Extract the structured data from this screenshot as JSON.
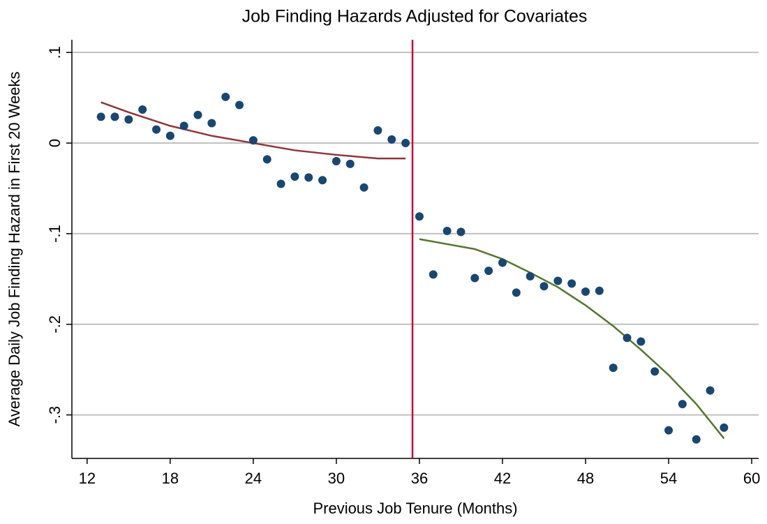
{
  "chart_data": {
    "type": "scatter",
    "title": "Job Finding Hazards Adjusted for Covariates",
    "x_label": "Previous Job Tenure (Months)",
    "y_label": "Average Daily Job Finding Hazard in First 20 Weeks",
    "x": [
      13,
      14,
      15,
      16,
      17,
      18,
      19,
      20,
      21,
      22,
      23,
      24,
      25,
      26,
      27,
      28,
      29,
      30,
      31,
      32,
      33,
      34,
      35,
      36,
      37,
      38,
      39,
      40,
      41,
      42,
      43,
      44,
      45,
      46,
      47,
      48,
      49,
      50,
      51,
      52,
      53,
      54,
      55,
      56,
      57,
      58
    ],
    "values": [
      0.029,
      0.029,
      0.026,
      0.037,
      0.015,
      0.008,
      0.019,
      0.031,
      0.022,
      0.051,
      0.042,
      0.003,
      -0.018,
      -0.045,
      -0.037,
      -0.038,
      -0.041,
      -0.02,
      -0.023,
      -0.049,
      0.014,
      0.004,
      0.0,
      -0.081,
      -0.145,
      -0.097,
      -0.098,
      -0.149,
      -0.141,
      -0.132,
      -0.165,
      -0.147,
      -0.158,
      -0.152,
      -0.155,
      -0.164,
      -0.163,
      -0.248,
      -0.215,
      -0.219,
      -0.252,
      -0.317,
      -0.288,
      -0.327,
      -0.273,
      -0.314
    ],
    "color": "#1a476f",
    "fits": [
      {
        "x": [
          13,
          15,
          18,
          21,
          24,
          27,
          30,
          33,
          35
        ],
        "values": [
          0.045,
          0.034,
          0.019,
          0.008,
          0.0,
          -0.008,
          -0.013,
          -0.017,
          -0.017
        ],
        "color": "#90353b"
      },
      {
        "x": [
          36,
          40,
          42,
          44,
          46,
          48,
          50,
          52,
          54,
          56,
          58
        ],
        "values": [
          -0.106,
          -0.117,
          -0.128,
          -0.143,
          -0.159,
          -0.179,
          -0.202,
          -0.228,
          -0.256,
          -0.288,
          -0.326
        ],
        "color": "#55752f"
      }
    ],
    "vline": {
      "x": 35.5,
      "color": "#c10534"
    },
    "xlim": [
      10.9,
      60.5
    ],
    "xticks": [
      12,
      18,
      24,
      30,
      36,
      42,
      48,
      54,
      60
    ],
    "ylim": [
      -0.348,
      0.114
    ],
    "yticks": [
      {
        "value": 0.1,
        "label": ".1"
      },
      0,
      {
        "value": -0.1,
        "label": "-.1"
      },
      {
        "value": -0.2,
        "label": "-.2"
      },
      {
        "value": -0.3,
        "label": "-.3"
      }
    ],
    "grid": true
  }
}
